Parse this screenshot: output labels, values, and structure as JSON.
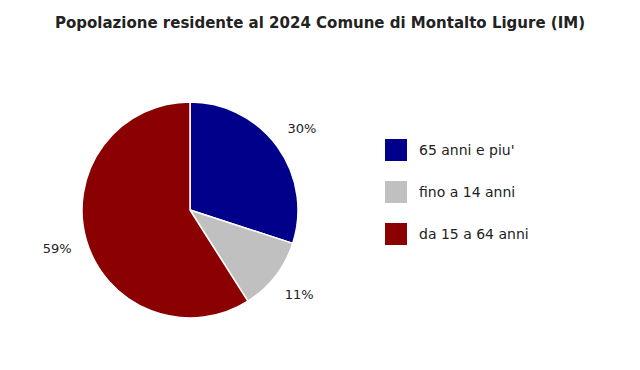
{
  "chart_data": {
    "type": "pie",
    "title": "Popolazione residente al 2024 Comune di Montalto Ligure (IM)",
    "categories": [
      "65 anni e piu'",
      "fino a 14 anni",
      "da 15 a 64 anni"
    ],
    "values": [
      30,
      11,
      59
    ],
    "value_labels": [
      "30%",
      "11%",
      "59%"
    ],
    "data_labels": true,
    "colors": [
      "#00008B",
      "#C0C0C0",
      "#8B0000"
    ],
    "legend": "right"
  }
}
